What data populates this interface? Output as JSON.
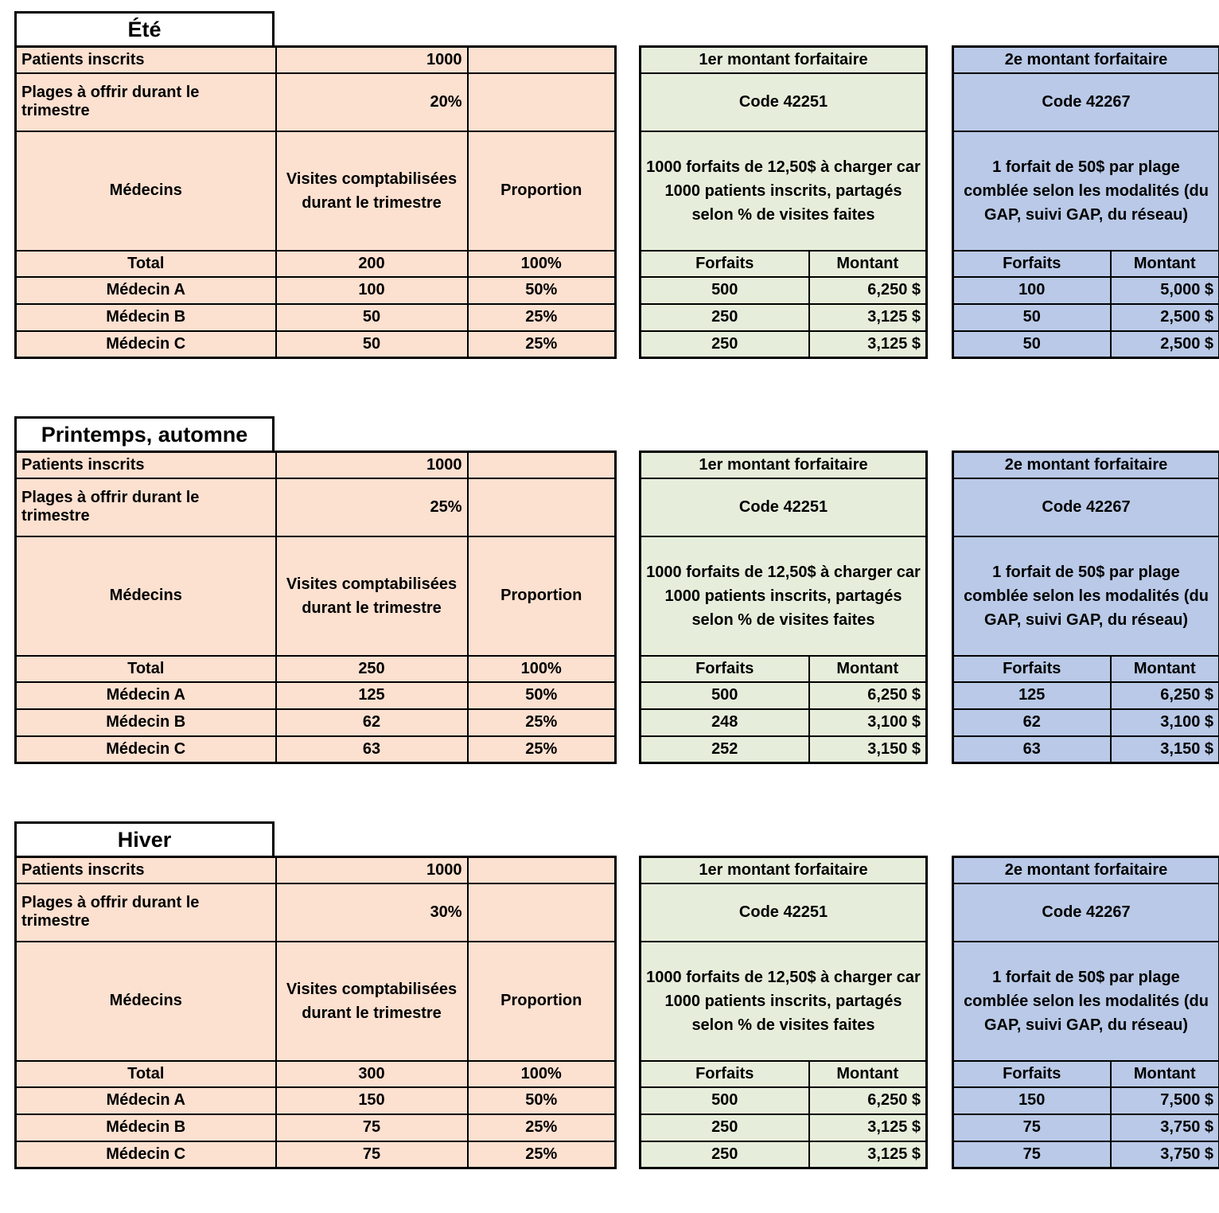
{
  "colors": {
    "peach": "#FCE0D0",
    "green": "#E6EEDB",
    "blue": "#B9C9E7",
    "border": "#000000"
  },
  "labels": {
    "patients": "Patients inscrits",
    "plages": "Plages à offrir durant le trimestre",
    "medecins": "Médecins",
    "visites_header": "Visites comptabilisées durant le trimestre",
    "proportion": "Proportion",
    "total": "Total",
    "forfaits": "Forfaits",
    "montant": "Montant",
    "forfait1_header": "1er montant forfaitaire",
    "forfait2_header": "2e montant forfaitaire",
    "forfait1_code": "Code 42251",
    "forfait2_code": "Code 42267",
    "forfait1_desc": "1000 forfaits de 12,50$ à charger car 1000 patients inscrits, partagés selon % de visites faites",
    "forfait2_desc": "1 forfait de 50$ par plage comblée selon les modalités (du GAP, suivi GAP, du réseau)"
  },
  "tables": [
    {
      "title": "Été",
      "patients_value": "1000",
      "plages_value": "20%",
      "total_visites": "200",
      "total_proportion": "100%",
      "medecins": [
        {
          "name": "Médecin A",
          "visites": "100",
          "proportion": "50%",
          "f1_forfaits": "500",
          "f1_montant": "6,250 $",
          "f2_forfaits": "100",
          "f2_montant": "5,000 $"
        },
        {
          "name": "Médecin B",
          "visites": "50",
          "proportion": "25%",
          "f1_forfaits": "250",
          "f1_montant": "3,125 $",
          "f2_forfaits": "50",
          "f2_montant": "2,500 $"
        },
        {
          "name": "Médecin C",
          "visites": "50",
          "proportion": "25%",
          "f1_forfaits": "250",
          "f1_montant": "3,125 $",
          "f2_forfaits": "50",
          "f2_montant": "2,500 $"
        }
      ]
    },
    {
      "title": "Printemps, automne",
      "patients_value": "1000",
      "plages_value": "25%",
      "total_visites": "250",
      "total_proportion": "100%",
      "medecins": [
        {
          "name": "Médecin A",
          "visites": "125",
          "proportion": "50%",
          "f1_forfaits": "500",
          "f1_montant": "6,250 $",
          "f2_forfaits": "125",
          "f2_montant": "6,250 $"
        },
        {
          "name": "Médecin B",
          "visites": "62",
          "proportion": "25%",
          "f1_forfaits": "248",
          "f1_montant": "3,100 $",
          "f2_forfaits": "62",
          "f2_montant": "3,100 $"
        },
        {
          "name": "Médecin C",
          "visites": "63",
          "proportion": "25%",
          "f1_forfaits": "252",
          "f1_montant": "3,150 $",
          "f2_forfaits": "63",
          "f2_montant": "3,150 $"
        }
      ]
    },
    {
      "title": "Hiver",
      "patients_value": "1000",
      "plages_value": "30%",
      "total_visites": "300",
      "total_proportion": "100%",
      "medecins": [
        {
          "name": "Médecin A",
          "visites": "150",
          "proportion": "50%",
          "f1_forfaits": "500",
          "f1_montant": "6,250 $",
          "f2_forfaits": "150",
          "f2_montant": "7,500 $"
        },
        {
          "name": "Médecin B",
          "visites": "75",
          "proportion": "25%",
          "f1_forfaits": "250",
          "f1_montant": "3,125 $",
          "f2_forfaits": "75",
          "f2_montant": "3,750 $"
        },
        {
          "name": "Médecin C",
          "visites": "75",
          "proportion": "25%",
          "f1_forfaits": "250",
          "f1_montant": "3,125 $",
          "f2_forfaits": "75",
          "f2_montant": "3,750 $"
        }
      ]
    }
  ]
}
